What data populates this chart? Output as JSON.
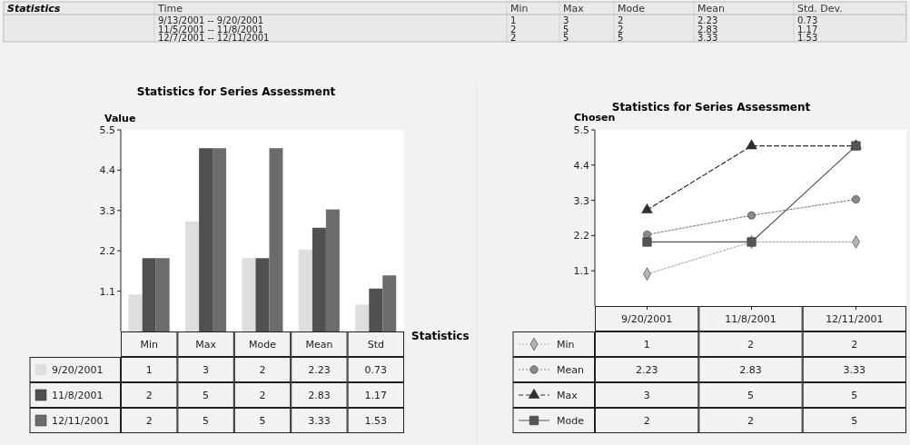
{
  "chart_data": [
    {
      "type": "other",
      "title": "Statistics",
      "categories": [
        "Time",
        "Min",
        "Max",
        "Mode",
        "Mean",
        "Std. Dev."
      ],
      "annotations": [
        "9/13/2001 -- 9/20/2001",
        "1",
        "3",
        "2",
        "2.23",
        "0.73",
        "11/5/2001 -- 11/8/2001",
        "2",
        "5",
        "2",
        "2.83",
        "1.17",
        "12/7/2001 -- 12/11/2001",
        "2",
        "5",
        "5",
        "3.33",
        "1.53"
      ]
    },
    {
      "type": "bar",
      "title": "Statistics for Series Assessment",
      "xlabel": "Statistics",
      "ylabel": "Value",
      "categories": [
        "Min",
        "Max",
        "Mode",
        "Mean",
        "Std"
      ],
      "series": [
        {
          "name": "9/20/2001",
          "color": "#dedede",
          "values": [
            1,
            3,
            2,
            2.23,
            0.73
          ]
        },
        {
          "name": "11/8/2001",
          "color": "#505050",
          "values": [
            2,
            5,
            2,
            2.83,
            1.17
          ]
        },
        {
          "name": "12/11/2001",
          "color": "#6c6c6c",
          "values": [
            2,
            5,
            5,
            3.33,
            1.53
          ]
        }
      ],
      "ylim": [
        0,
        5.5
      ],
      "yticks": [
        1.1,
        2.2,
        3.3,
        4.4,
        5.5
      ],
      "data_labels": true,
      "legend": "bottom left"
    },
    {
      "type": "line",
      "title": "Statistics for Series Assessment",
      "ylabel": "Chosen",
      "categories": [
        "9/20/2001",
        "11/8/2001",
        "12/11/2001"
      ],
      "series": [
        {
          "name": "Min",
          "color": "#b4b4b4",
          "values": [
            1,
            2,
            2
          ],
          "marker": "diamond",
          "line_style": "dotted"
        },
        {
          "name": "Mean",
          "color": "#8a8a8a",
          "values": [
            2.23,
            2.83,
            3.33
          ],
          "marker": "circle",
          "line_style": "dotted"
        },
        {
          "name": "Max",
          "color": "#2e2e2e",
          "values": [
            3,
            5,
            5
          ],
          "marker": "triangle",
          "line_style": "dashed"
        },
        {
          "name": "Mode",
          "color": "#555555",
          "values": [
            2,
            2,
            5
          ],
          "marker": "square",
          "line_style": "solid"
        }
      ],
      "ylim": [
        0,
        5.5
      ],
      "yticks": [
        1.1,
        2.2,
        3.3,
        4.4,
        5.5
      ],
      "data_labels": true,
      "legend": "bottom left"
    }
  ]
}
